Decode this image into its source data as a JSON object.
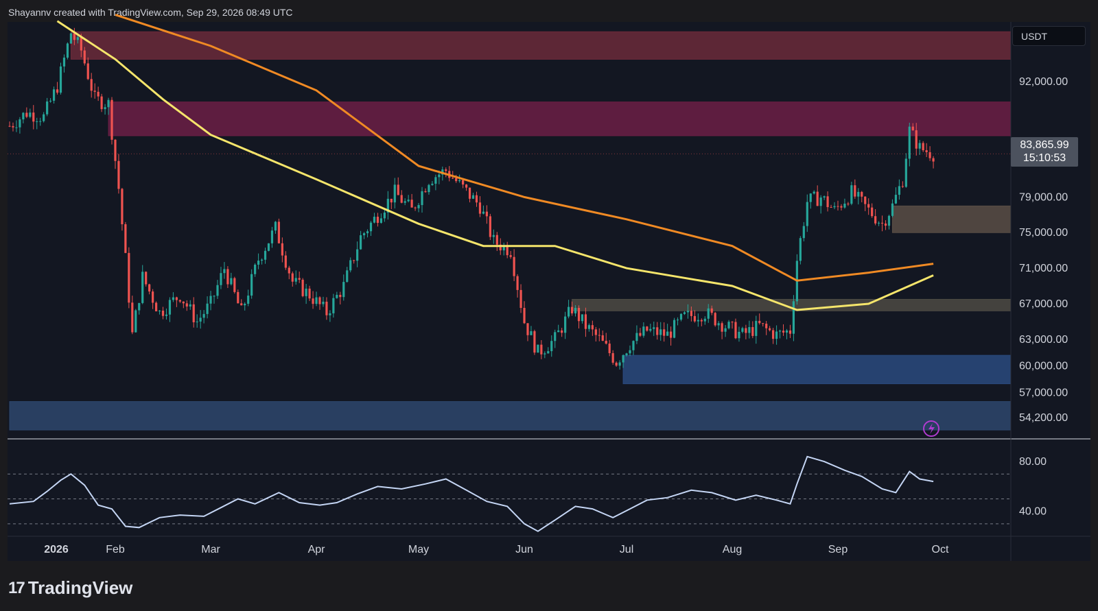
{
  "header": {
    "credit": "Shayannv created with TradingView.com, Sep 29, 2026 08:49 UTC"
  },
  "footer": {
    "logo_text": "TradingView",
    "logo_mark": "17"
  },
  "currency": "USDT",
  "last_price": {
    "value": "83,865.99",
    "countdown": "15:10:53"
  },
  "colors": {
    "bg": "#131722",
    "up": "#26a69a",
    "down": "#ef5350",
    "ma_yellow": "#f5e56b",
    "ma_orange": "#f08a24",
    "rsi": "#c5d6f5"
  },
  "chart_data": [
    {
      "type": "candlestick",
      "price_axis_labels": [
        "92,000.00",
        "79,000.00",
        "75,000.00",
        "71,000.00",
        "67,000.00",
        "63,000.00",
        "60,000.00",
        "57,000.00",
        "54,200.00"
      ],
      "time_axis_labels": [
        "2026",
        "Feb",
        "Mar",
        "Apr",
        "May",
        "Jun",
        "Jul",
        "Aug",
        "Sep",
        "Oct"
      ],
      "ylim": [
        51800,
        98700
      ],
      "close_path": [
        [
          "2026-01-01",
          87000
        ],
        [
          "2026-01-06",
          88500
        ],
        [
          "2026-01-11",
          88000
        ],
        [
          "2026-01-15",
          91500
        ],
        [
          "2026-01-19",
          97500
        ],
        [
          "2026-01-22",
          95500
        ],
        [
          "2026-01-26",
          90000
        ],
        [
          "2026-01-30",
          89500
        ],
        [
          "2026-02-02",
          80000
        ],
        [
          "2026-02-04",
          72000
        ],
        [
          "2026-02-06",
          63500
        ],
        [
          "2026-02-09",
          70000
        ],
        [
          "2026-02-14",
          66000
        ],
        [
          "2026-02-20",
          68000
        ],
        [
          "2026-02-25",
          65000
        ],
        [
          "2026-03-01",
          67000
        ],
        [
          "2026-03-05",
          71000
        ],
        [
          "2026-03-10",
          66000
        ],
        [
          "2026-03-15",
          72000
        ],
        [
          "2026-03-20",
          75500
        ],
        [
          "2026-03-25",
          69500
        ],
        [
          "2026-03-30",
          68000
        ],
        [
          "2026-04-04",
          66000
        ],
        [
          "2026-04-09",
          69000
        ],
        [
          "2026-04-14",
          74500
        ],
        [
          "2026-04-19",
          77000
        ],
        [
          "2026-04-24",
          79500
        ],
        [
          "2026-04-29",
          77500
        ],
        [
          "2026-05-04",
          81000
        ],
        [
          "2026-05-09",
          82000
        ],
        [
          "2026-05-14",
          80000
        ],
        [
          "2026-05-19",
          78000
        ],
        [
          "2026-05-23",
          74000
        ],
        [
          "2026-05-28",
          73000
        ],
        [
          "2026-06-01",
          65000
        ],
        [
          "2026-06-05",
          61500
        ],
        [
          "2026-06-10",
          63000
        ],
        [
          "2026-06-15",
          66500
        ],
        [
          "2026-06-19",
          64500
        ],
        [
          "2026-06-23",
          63000
        ],
        [
          "2026-06-28",
          60500
        ],
        [
          "2026-07-02",
          62500
        ],
        [
          "2026-07-07",
          64000
        ],
        [
          "2026-07-13",
          63500
        ],
        [
          "2026-07-18",
          65500
        ],
        [
          "2026-07-24",
          66000
        ],
        [
          "2026-07-30",
          64500
        ],
        [
          "2026-08-04",
          63500
        ],
        [
          "2026-08-09",
          64500
        ],
        [
          "2026-08-14",
          63500
        ],
        [
          "2026-08-18",
          64000
        ],
        [
          "2026-08-20",
          72000
        ],
        [
          "2026-08-23",
          78500
        ],
        [
          "2026-08-27",
          79000
        ],
        [
          "2026-08-31",
          77500
        ],
        [
          "2026-09-05",
          79500
        ],
        [
          "2026-09-10",
          77500
        ],
        [
          "2026-09-14",
          76000
        ],
        [
          "2026-09-17",
          78000
        ],
        [
          "2026-09-20",
          81000
        ],
        [
          "2026-09-22",
          86500
        ],
        [
          "2026-09-25",
          84500
        ],
        [
          "2026-09-29",
          83866
        ]
      ],
      "moving_averages": [
        {
          "color": "#f5e56b",
          "points": [
            [
              "2026-01-15",
              98800
            ],
            [
              "2026-02-01",
              94500
            ],
            [
              "2026-02-15",
              90000
            ],
            [
              "2026-03-01",
              86000
            ],
            [
              "2026-04-01",
              81000
            ],
            [
              "2026-05-01",
              76000
            ],
            [
              "2026-05-20",
              73500
            ],
            [
              "2026-06-10",
              73500
            ],
            [
              "2026-07-01",
              71000
            ],
            [
              "2026-08-01",
              69000
            ],
            [
              "2026-08-20",
              66300
            ],
            [
              "2026-09-10",
              67000
            ],
            [
              "2026-09-29",
              70200
            ]
          ]
        },
        {
          "color": "#f08a24",
          "points": [
            [
              "2026-02-01",
              99500
            ],
            [
              "2026-03-01",
              96000
            ],
            [
              "2026-04-01",
              91000
            ],
            [
              "2026-05-01",
              82500
            ],
            [
              "2026-06-01",
              79000
            ],
            [
              "2026-07-01",
              76500
            ],
            [
              "2026-08-01",
              73500
            ],
            [
              "2026-08-20",
              69600
            ],
            [
              "2026-09-10",
              70500
            ],
            [
              "2026-09-29",
              71500
            ]
          ]
        }
      ],
      "zones": [
        {
          "color": "#6b2a3a",
          "from": "2026-01-19",
          "to": null,
          "low": 94500,
          "high": 97600
        },
        {
          "color": "#6c1f45",
          "from": "2026-01-30",
          "to": null,
          "low": 85900,
          "high": 89700
        },
        {
          "color": "#5a4e45",
          "from": "2026-09-17",
          "to": null,
          "low": 75000,
          "high": 78000
        },
        {
          "color": "#4d4a43",
          "from": "2026-06-15",
          "to": null,
          "low": 66200,
          "high": 67500
        },
        {
          "color": "#2a4a7e",
          "from": "2026-06-30",
          "to": null,
          "low": 58000,
          "high": 61200
        },
        {
          "color": "#2e476c",
          "from": "2026-01-01",
          "to": null,
          "low": 52800,
          "high": 56000
        }
      ]
    },
    {
      "type": "line",
      "name": "",
      "y_axis_labels": [
        "80.00",
        "40.00"
      ],
      "ylim": [
        20,
        96
      ],
      "levels": [
        70,
        50,
        30
      ],
      "points": [
        [
          "2026-01-01",
          46
        ],
        [
          "2026-01-08",
          48
        ],
        [
          "2026-01-12",
          56
        ],
        [
          "2026-01-16",
          65
        ],
        [
          "2026-01-19",
          70
        ],
        [
          "2026-01-23",
          61
        ],
        [
          "2026-01-27",
          45
        ],
        [
          "2026-01-31",
          42
        ],
        [
          "2026-02-04",
          28
        ],
        [
          "2026-02-08",
          27
        ],
        [
          "2026-02-14",
          35
        ],
        [
          "2026-02-20",
          37
        ],
        [
          "2026-02-27",
          36
        ],
        [
          "2026-03-04",
          43
        ],
        [
          "2026-03-09",
          50
        ],
        [
          "2026-03-14",
          46
        ],
        [
          "2026-03-21",
          55
        ],
        [
          "2026-03-27",
          47
        ],
        [
          "2026-04-02",
          45
        ],
        [
          "2026-04-07",
          47
        ],
        [
          "2026-04-13",
          54
        ],
        [
          "2026-04-19",
          60
        ],
        [
          "2026-04-26",
          58
        ],
        [
          "2026-05-03",
          62
        ],
        [
          "2026-05-09",
          66
        ],
        [
          "2026-05-15",
          57
        ],
        [
          "2026-05-21",
          48
        ],
        [
          "2026-05-27",
          44
        ],
        [
          "2026-06-01",
          30
        ],
        [
          "2026-06-05",
          24
        ],
        [
          "2026-06-10",
          33
        ],
        [
          "2026-06-16",
          44
        ],
        [
          "2026-06-21",
          42
        ],
        [
          "2026-06-27",
          35
        ],
        [
          "2026-07-02",
          42
        ],
        [
          "2026-07-07",
          49
        ],
        [
          "2026-07-13",
          51
        ],
        [
          "2026-07-20",
          57
        ],
        [
          "2026-07-26",
          55
        ],
        [
          "2026-08-02",
          49
        ],
        [
          "2026-08-08",
          53
        ],
        [
          "2026-08-14",
          49
        ],
        [
          "2026-08-18",
          46
        ],
        [
          "2026-08-20",
          62
        ],
        [
          "2026-08-23",
          84
        ],
        [
          "2026-08-28",
          80
        ],
        [
          "2026-09-03",
          73
        ],
        [
          "2026-09-08",
          68
        ],
        [
          "2026-09-14",
          58
        ],
        [
          "2026-09-18",
          55
        ],
        [
          "2026-09-22",
          72
        ],
        [
          "2026-09-25",
          66
        ],
        [
          "2026-09-29",
          64
        ]
      ]
    }
  ]
}
